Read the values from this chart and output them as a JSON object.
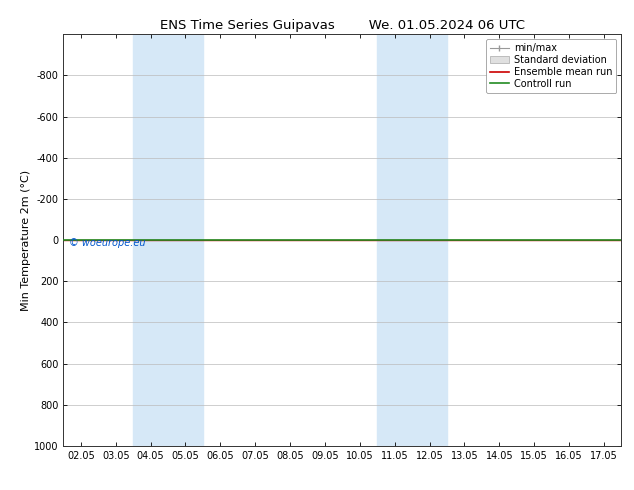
{
  "title_left": "ENS Time Series Guipavas",
  "title_right": "We. 01.05.2024 06 UTC",
  "ylabel": "Min Temperature 2m (°C)",
  "ylim": [
    -1000,
    1000
  ],
  "yticks": [
    -800,
    -600,
    -400,
    -200,
    0,
    200,
    400,
    600,
    800,
    1000
  ],
  "xtick_labels": [
    "02.05",
    "03.05",
    "04.05",
    "05.05",
    "06.05",
    "07.05",
    "08.05",
    "09.05",
    "10.05",
    "11.05",
    "12.05",
    "13.05",
    "14.05",
    "15.05",
    "16.05",
    "17.05"
  ],
  "xtick_positions": [
    0,
    1,
    2,
    3,
    4,
    5,
    6,
    7,
    8,
    9,
    10,
    11,
    12,
    13,
    14,
    15
  ],
  "xmin": -0.5,
  "xmax": 15.5,
  "shaded_bands": [
    {
      "x_start": 2.0,
      "x_end": 4.0,
      "color": "#d6e8f7"
    },
    {
      "x_start": 9.0,
      "x_end": 11.0,
      "color": "#d6e8f7"
    }
  ],
  "control_run_y": 0,
  "control_run_color": "#228B22",
  "ensemble_mean_color": "#cc0000",
  "minmax_color": "#999999",
  "std_color": "#cccccc",
  "copyright_text": "© woeurope.eu",
  "copyright_color": "#0055cc",
  "legend_entries": [
    "min/max",
    "Standard deviation",
    "Ensemble mean run",
    "Controll run"
  ],
  "background_color": "#ffffff",
  "plot_bg_color": "#ffffff",
  "grid_color": "#bbbbbb",
  "title_fontsize": 9.5,
  "axis_fontsize": 8,
  "tick_fontsize": 7,
  "legend_fontsize": 7
}
